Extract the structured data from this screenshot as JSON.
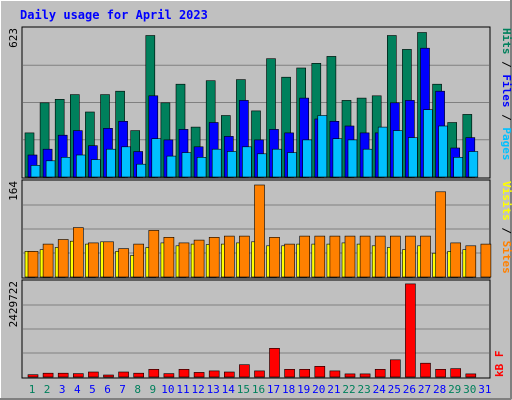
{
  "chart_data": [
    {
      "type": "bar",
      "title": "Daily usage for April 2023",
      "ylabel": "Pages / Files / Hits",
      "ylabel_parts": [
        "Pages",
        "Files",
        "Hits"
      ],
      "ymax_label": "623",
      "ylim": [
        0,
        623
      ],
      "categories": [
        "1",
        "2",
        "3",
        "4",
        "5",
        "6",
        "7",
        "8",
        "9",
        "10",
        "11",
        "12",
        "13",
        "14",
        "15",
        "16",
        "17",
        "18",
        "19",
        "20",
        "21",
        "22",
        "23",
        "24",
        "25",
        "26",
        "27",
        "28",
        "29",
        "30",
        "31"
      ],
      "series": [
        {
          "name": "Hits",
          "color": "#00805c",
          "values": [
            190,
            320,
            335,
            355,
            280,
            355,
            370,
            200,
            610,
            320,
            400,
            215,
            415,
            265,
            420,
            285,
            510,
            430,
            470,
            490,
            520,
            330,
            340,
            350,
            610,
            550,
            623,
            400,
            235,
            270,
            0
          ]
        },
        {
          "name": "Files",
          "color": "#0000ff",
          "values": [
            95,
            120,
            180,
            200,
            135,
            210,
            240,
            110,
            350,
            160,
            205,
            130,
            235,
            175,
            330,
            160,
            205,
            190,
            340,
            250,
            240,
            220,
            190,
            190,
            320,
            330,
            555,
            370,
            125,
            170,
            0
          ]
        },
        {
          "name": "Pages",
          "color": "#00c0ff",
          "values": [
            50,
            70,
            85,
            95,
            75,
            120,
            130,
            55,
            165,
            90,
            105,
            85,
            120,
            110,
            130,
            100,
            120,
            105,
            160,
            265,
            165,
            160,
            120,
            215,
            200,
            170,
            290,
            220,
            85,
            110,
            0
          ]
        }
      ]
    },
    {
      "type": "bar",
      "ylabel": "Sites / Visits",
      "ylabel_parts": [
        "Sites",
        "Visits"
      ],
      "ymax_label": "164",
      "ylim": [
        0,
        164
      ],
      "categories": [
        "1",
        "2",
        "3",
        "4",
        "5",
        "6",
        "7",
        "8",
        "9",
        "10",
        "11",
        "12",
        "13",
        "14",
        "15",
        "16",
        "17",
        "18",
        "19",
        "20",
        "21",
        "22",
        "23",
        "24",
        "25",
        "26",
        "27",
        "28",
        "29",
        "30",
        "31"
      ],
      "series": [
        {
          "name": "Visits",
          "color": "#ffff00",
          "values": [
            45,
            48,
            52,
            63,
            58,
            62,
            45,
            38,
            52,
            60,
            55,
            58,
            57,
            58,
            60,
            62,
            55,
            55,
            58,
            58,
            58,
            60,
            58,
            55,
            52,
            48,
            55,
            42,
            45,
            48,
            0
          ]
        },
        {
          "name": "Sites",
          "color": "#ff8000",
          "values": [
            45,
            58,
            66,
            87,
            60,
            62,
            50,
            58,
            82,
            70,
            60,
            65,
            70,
            72,
            72,
            162,
            70,
            58,
            72,
            72,
            72,
            72,
            72,
            72,
            72,
            72,
            72,
            150,
            60,
            55,
            58
          ]
        }
      ]
    },
    {
      "type": "bar",
      "ylabel": "kB F",
      "ylabel_parts": [
        "kB F"
      ],
      "ymax_label": "2429722",
      "ylim": [
        0,
        2429722
      ],
      "categories": [
        "1",
        "2",
        "3",
        "4",
        "5",
        "6",
        "7",
        "8",
        "9",
        "10",
        "11",
        "12",
        "13",
        "14",
        "15",
        "16",
        "17",
        "18",
        "19",
        "20",
        "21",
        "22",
        "23",
        "24",
        "25",
        "26",
        "27",
        "28",
        "29",
        "30",
        "31"
      ],
      "series": [
        {
          "name": "kB F",
          "color": "#ff0000",
          "values": [
            60000,
            100000,
            100000,
            90000,
            130000,
            50000,
            130000,
            100000,
            200000,
            90000,
            200000,
            120000,
            160000,
            130000,
            320000,
            160000,
            750000,
            200000,
            200000,
            280000,
            160000,
            80000,
            80000,
            200000,
            450000,
            2429722,
            360000,
            200000,
            220000,
            80000,
            0
          ]
        }
      ]
    }
  ],
  "colors": {
    "background": "#c0c0c0",
    "title": "#0000ff",
    "gridline": "#808080",
    "weekday_label": "#0000ff",
    "weekend_label": "#00805c"
  },
  "weekend_days": [
    "1",
    "2",
    "8",
    "9",
    "15",
    "16",
    "22",
    "23",
    "29",
    "30"
  ]
}
